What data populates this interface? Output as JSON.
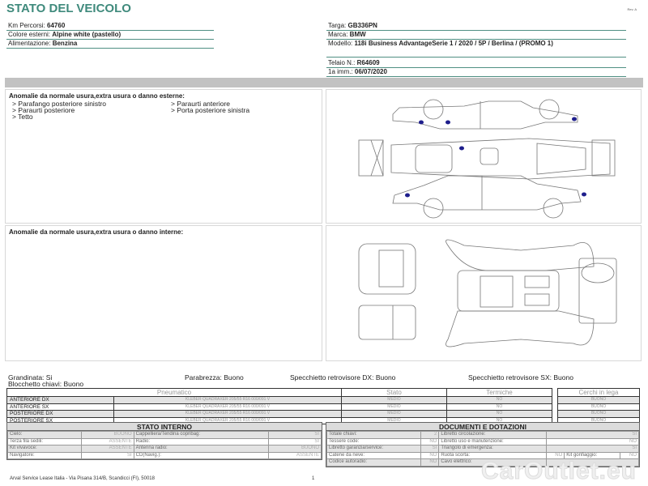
{
  "header": {
    "title": "STATO DEL VEICOLO",
    "rev": "Rev. A"
  },
  "vehicle_left": [
    {
      "label": "Km Percorsi: ",
      "value": "64760"
    },
    {
      "label": "Colore esterni: ",
      "value": "Alpine white (pastello)"
    },
    {
      "label": "Alimentazione: ",
      "value": "Benzina"
    }
  ],
  "vehicle_right": [
    {
      "label": "Targa: ",
      "value": "GB336PN"
    },
    {
      "label": "Marca: ",
      "value": "BMW"
    },
    {
      "label": "Modello: ",
      "value": "118i Business AdvantageSerie 1 / 2020 / 5P / Berlina / (PROMO 1)"
    },
    {
      "label": "Telaio N.: ",
      "value": "R64609"
    },
    {
      "label": "1a imm.: ",
      "value": "06/07/2020"
    }
  ],
  "exterior": {
    "title": "Anomalie da normale usura,extra usura o danno esterne:",
    "items": [
      "> Parafango posteriore sinistro",
      "> Paraurti anteriore",
      "> Paraurti posteriore",
      "> Porta posteriore sinistra",
      "> Tetto"
    ],
    "damage_color": "#1e1e8c"
  },
  "interior": {
    "title": "Anomalie da normale usura,extra usura o danno interne:"
  },
  "checks": {
    "grandinata": "Grandinata: Si",
    "parabrezza": "Parabrezza: Buono",
    "spec_dx": "Specchietto retrovisore DX: Buono",
    "spec_sx": "Specchietto retrovisore SX: Buono",
    "blocchetto": "Blocchetto chiavi: Buono"
  },
  "tires": {
    "headers": [
      "Pneumatico",
      "Stato",
      "Termiche"
    ],
    "rims_header": "Cerchi in lega",
    "rows": [
      {
        "pos": "ANTERIORE DX",
        "tire": "KLEBER QUADRAXER 205/55 R16 000/091 V",
        "stato": "MEDIO",
        "termiche": "NO",
        "cerchi": "BUONO"
      },
      {
        "pos": "ANTERIORE SX",
        "tire": "KLEBER QUADRAXER 205/55 R16 000/091 V",
        "stato": "MEDIO",
        "termiche": "NO",
        "cerchi": "BUONO"
      },
      {
        "pos": "POSTERIORE DX",
        "tire": "KLEBER QUADRAXER 205/55 R16 000/091 V",
        "stato": "MEDIO",
        "termiche": "NO",
        "cerchi": "BUONO"
      },
      {
        "pos": "POSTERIORE SX",
        "tire": "KLEBER QUADRAXER 205/55 R16 000/091 V",
        "stato": "MEDIO",
        "termiche": "NO",
        "cerchi": "BUONO"
      }
    ]
  },
  "stato_interno": {
    "title": "STATO INTERNO",
    "rows": [
      [
        "Cielo:",
        "BUONO",
        "Cappelliera/Tendina copribag:",
        "SI"
      ],
      [
        "Terza fila sedili:",
        "ASSENTE",
        "Radio:",
        "SI"
      ],
      [
        "Kit vivavoce:",
        "ASSENTE",
        "Antenna radio:",
        "BUONO"
      ],
      [
        "Navigatore:",
        "SI",
        "CD(Navig.):",
        "ASSENTE"
      ]
    ]
  },
  "documenti": {
    "title": "DOCUMENTI E DOTAZIONI",
    "rows": [
      [
        "Totale chiavi:",
        "2",
        "Libretto circolazione:",
        "SI"
      ],
      [
        "Tessere code:",
        "NO",
        "Libretto uso e manutenzione:",
        "NO"
      ],
      [
        "Libretto garanzia/service:",
        "SI",
        "Triangolo di emergenza:",
        "SI"
      ],
      [
        "Catene da neve:",
        "NO",
        "Ruota scorta:",
        "NO",
        "Kit gonfiaggio:",
        "NO"
      ],
      [
        "Codice autoradio:",
        "NO",
        "Cavo elettrico:",
        ""
      ]
    ]
  },
  "footer": {
    "address": "Arval Service Lease Italia - Via Pisana 314/B, Scandicci (FI), 50018",
    "page": "1"
  },
  "watermark": "CarOutlet.eu"
}
